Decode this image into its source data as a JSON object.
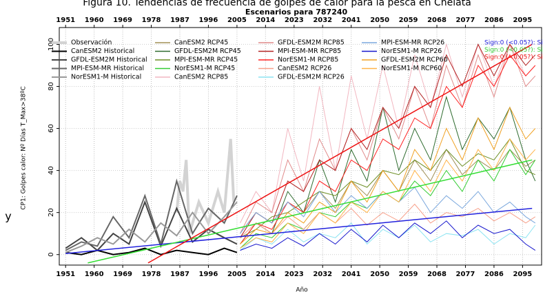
{
  "chart_data": {
    "type": "line",
    "title": "Figura 10. Tendencias de frecuencia de golpes de calor para la pesca en Chelata",
    "subtitle": "Escenarios  para  787240",
    "x_label": "Año",
    "y_label": "CP1: Golpes calor: Nº Días T_Max>38ºC",
    "stray_label": "y",
    "xlim": [
      1949,
      2101
    ],
    "ylim": [
      -5,
      108
    ],
    "xticks": [
      1951,
      1960,
      1969,
      1978,
      1987,
      1996,
      2005,
      2014,
      2023,
      2032,
      2041,
      2050,
      2059,
      2068,
      2077,
      2086,
      2095
    ],
    "yticks": [
      0,
      20,
      40,
      60,
      80,
      100
    ],
    "grid": true,
    "series": [
      {
        "name": "Observación",
        "color": "#d3d3d3",
        "width": 4,
        "x": [
          1986,
          1987,
          1988,
          1989,
          1990,
          1993,
          1996,
          1999,
          2001,
          2003,
          2004
        ],
        "values": [
          20,
          35,
          30,
          45,
          10,
          25,
          15,
          30,
          20,
          55,
          25
        ]
      },
      {
        "name": "CanESM2 Historical",
        "color": "#000000",
        "width": 2,
        "x": [
          1951,
          1956,
          1961,
          1966,
          1971,
          1976,
          1981,
          1986,
          1991,
          1996,
          2001,
          2005
        ],
        "values": [
          1,
          0,
          2,
          0,
          1,
          3,
          0,
          2,
          1,
          0,
          3,
          1
        ]
      },
      {
        "name": "GFDL-ESM2M Historical",
        "color": "#444444",
        "width": 2,
        "x": [
          1951,
          1956,
          1961,
          1966,
          1971,
          1976,
          1981,
          1986,
          1991,
          1996,
          2001,
          2005
        ],
        "values": [
          3,
          8,
          2,
          10,
          5,
          25,
          4,
          22,
          6,
          12,
          8,
          5
        ]
      },
      {
        "name": "MPI-ESM-MR Historical",
        "color": "#666666",
        "width": 2,
        "x": [
          1951,
          1956,
          1961,
          1966,
          1971,
          1976,
          1981,
          1986,
          1991,
          1996,
          2001,
          2005
        ],
        "values": [
          2,
          6,
          4,
          18,
          8,
          28,
          5,
          35,
          10,
          22,
          15,
          28
        ]
      },
      {
        "name": "NorESM1-M Historical",
        "color": "#999999",
        "width": 2,
        "x": [
          1951,
          1956,
          1961,
          1966,
          1971,
          1976,
          1981,
          1986,
          1991,
          1996,
          2001,
          2005
        ],
        "values": [
          1,
          4,
          8,
          5,
          12,
          6,
          15,
          9,
          20,
          10,
          18,
          25
        ]
      },
      {
        "name": "CanESM2 RCP45",
        "color": "#a08f55",
        "width": 1,
        "x": [
          2006,
          2011,
          2016,
          2021,
          2026,
          2031,
          2036,
          2041,
          2046,
          2051,
          2056,
          2061,
          2066,
          2071,
          2076,
          2081,
          2086,
          2091,
          2096,
          2099
        ],
        "values": [
          10,
          20,
          15,
          25,
          20,
          30,
          22,
          35,
          28,
          40,
          30,
          45,
          35,
          50,
          38,
          45,
          40,
          50,
          42,
          45
        ]
      },
      {
        "name": "GFDL-ESM2M RCP45",
        "color": "#2e6b2e",
        "width": 1,
        "x": [
          2006,
          2011,
          2016,
          2021,
          2026,
          2031,
          2036,
          2041,
          2046,
          2051,
          2056,
          2061,
          2066,
          2071,
          2076,
          2081,
          2086,
          2091,
          2096,
          2099
        ],
        "values": [
          5,
          15,
          10,
          30,
          20,
          45,
          25,
          50,
          35,
          70,
          40,
          60,
          45,
          75,
          50,
          65,
          55,
          70,
          45,
          35
        ]
      },
      {
        "name": "MPI-ESM-MR RCP45",
        "color": "#6b8e23",
        "width": 1,
        "x": [
          2006,
          2011,
          2016,
          2021,
          2026,
          2031,
          2036,
          2041,
          2046,
          2051,
          2056,
          2061,
          2066,
          2071,
          2076,
          2081,
          2086,
          2091,
          2096,
          2099
        ],
        "values": [
          8,
          12,
          18,
          20,
          25,
          30,
          28,
          35,
          32,
          40,
          38,
          45,
          40,
          50,
          42,
          48,
          45,
          55,
          40,
          38
        ]
      },
      {
        "name": "NorESM1-M RCP45",
        "color": "#33cc33",
        "width": 1,
        "x": [
          2006,
          2011,
          2016,
          2021,
          2026,
          2031,
          2036,
          2041,
          2046,
          2051,
          2056,
          2061,
          2066,
          2071,
          2076,
          2081,
          2086,
          2091,
          2096,
          2099
        ],
        "values": [
          3,
          10,
          8,
          15,
          12,
          20,
          18,
          25,
          22,
          30,
          25,
          35,
          28,
          40,
          30,
          45,
          35,
          50,
          38,
          45
        ]
      },
      {
        "name": "CanESM2 RCP85",
        "color": "#f2b6c0",
        "width": 1,
        "x": [
          2006,
          2011,
          2016,
          2021,
          2026,
          2031,
          2036,
          2041,
          2046,
          2051,
          2056,
          2061,
          2066,
          2071,
          2076,
          2081,
          2086,
          2091,
          2096,
          2099
        ],
        "values": [
          15,
          30,
          20,
          60,
          35,
          80,
          40,
          85,
          55,
          90,
          60,
          95,
          70,
          100,
          75,
          100,
          80,
          100,
          85,
          90
        ]
      },
      {
        "name": "GFDL-ESM2M RCP85",
        "color": "#e08a8a",
        "width": 1,
        "x": [
          2006,
          2011,
          2016,
          2021,
          2026,
          2031,
          2036,
          2041,
          2046,
          2051,
          2056,
          2061,
          2066,
          2071,
          2076,
          2081,
          2086,
          2091,
          2096,
          2099
        ],
        "values": [
          10,
          25,
          20,
          45,
          30,
          55,
          40,
          60,
          45,
          70,
          55,
          80,
          60,
          90,
          70,
          95,
          75,
          100,
          80,
          85
        ]
      },
      {
        "name": "MPI-ESM-MR RCP85",
        "color": "#b22222",
        "width": 1,
        "x": [
          2006,
          2011,
          2016,
          2021,
          2026,
          2031,
          2036,
          2041,
          2046,
          2051,
          2056,
          2061,
          2066,
          2071,
          2076,
          2081,
          2086,
          2091,
          2096,
          2099
        ],
        "values": [
          8,
          20,
          15,
          35,
          30,
          45,
          40,
          60,
          50,
          70,
          60,
          80,
          70,
          95,
          80,
          100,
          85,
          100,
          90,
          95
        ]
      },
      {
        "name": "NorESM1-M RCP85",
        "color": "#ff2020",
        "width": 1,
        "x": [
          2006,
          2011,
          2016,
          2021,
          2026,
          2031,
          2036,
          2041,
          2046,
          2051,
          2056,
          2061,
          2066,
          2071,
          2076,
          2081,
          2086,
          2091,
          2096,
          2099
        ],
        "values": [
          5,
          15,
          12,
          25,
          20,
          35,
          30,
          45,
          40,
          55,
          50,
          65,
          60,
          80,
          70,
          90,
          80,
          95,
          85,
          90
        ]
      },
      {
        "name": "CanESM2 RCP26",
        "color": "#f7a08a",
        "width": 1,
        "x": [
          2006,
          2011,
          2016,
          2021,
          2026,
          2031,
          2036,
          2041,
          2046,
          2051,
          2056,
          2061,
          2066,
          2071,
          2076,
          2081,
          2086,
          2091,
          2096,
          2099
        ],
        "values": [
          8,
          15,
          10,
          18,
          12,
          20,
          15,
          22,
          14,
          20,
          16,
          24,
          15,
          20,
          18,
          22,
          16,
          20,
          15,
          18
        ]
      },
      {
        "name": "GFDL-ESM2M RCP26",
        "color": "#8ce4f2",
        "width": 1,
        "x": [
          2006,
          2011,
          2016,
          2021,
          2026,
          2031,
          2036,
          2041,
          2046,
          2051,
          2056,
          2061,
          2066,
          2071,
          2076,
          2081,
          2086,
          2091,
          2096,
          2099
        ],
        "values": [
          2,
          8,
          5,
          12,
          6,
          10,
          8,
          15,
          5,
          12,
          8,
          14,
          6,
          10,
          9,
          12,
          5,
          10,
          8,
          14
        ]
      },
      {
        "name": "MPI-ESM-MR RCP26",
        "color": "#7aa7dd",
        "width": 1,
        "x": [
          2006,
          2011,
          2016,
          2021,
          2026,
          2031,
          2036,
          2041,
          2046,
          2051,
          2056,
          2061,
          2066,
          2071,
          2076,
          2081,
          2086,
          2091,
          2096,
          2099
        ],
        "values": [
          10,
          20,
          15,
          25,
          18,
          30,
          20,
          28,
          22,
          30,
          25,
          32,
          20,
          28,
          22,
          30,
          20,
          25,
          18,
          15
        ]
      },
      {
        "name": "NorESM1-M RCP26",
        "color": "#1515cc",
        "width": 1,
        "x": [
          2006,
          2011,
          2016,
          2021,
          2026,
          2031,
          2036,
          2041,
          2046,
          2051,
          2056,
          2061,
          2066,
          2071,
          2076,
          2081,
          2086,
          2091,
          2096,
          2099
        ],
        "values": [
          2,
          5,
          3,
          8,
          4,
          10,
          5,
          12,
          6,
          14,
          8,
          15,
          10,
          16,
          8,
          14,
          10,
          12,
          5,
          2
        ]
      },
      {
        "name": "GFDL-ESM2M RCP60",
        "color": "#f0a020",
        "width": 1,
        "x": [
          2006,
          2011,
          2016,
          2021,
          2026,
          2031,
          2036,
          2041,
          2046,
          2051,
          2056,
          2061,
          2066,
          2071,
          2076,
          2081,
          2086,
          2091,
          2096,
          2099
        ],
        "values": [
          5,
          12,
          10,
          20,
          15,
          25,
          20,
          35,
          25,
          40,
          30,
          50,
          40,
          60,
          45,
          65,
          50,
          70,
          55,
          60
        ]
      },
      {
        "name": "NorESM1-M RCP60",
        "color": "#ffb347",
        "width": 1,
        "x": [
          2006,
          2011,
          2016,
          2021,
          2026,
          2031,
          2036,
          2041,
          2046,
          2051,
          2056,
          2061,
          2066,
          2071,
          2076,
          2081,
          2086,
          2091,
          2096,
          2099
        ],
        "values": [
          3,
          8,
          6,
          15,
          10,
          20,
          15,
          25,
          20,
          30,
          25,
          40,
          30,
          45,
          35,
          50,
          40,
          55,
          45,
          50
        ]
      }
    ],
    "trend_lines": [
      {
        "color": "#2020dd",
        "x": [
          1951,
          2098
        ],
        "values": [
          0.5,
          22
        ]
      },
      {
        "color": "#33dd33",
        "x": [
          1958,
          2098
        ],
        "values": [
          -4,
          45
        ]
      },
      {
        "color": "#ee1111",
        "x": [
          1977,
          2098
        ],
        "values": [
          -4,
          100
        ]
      }
    ],
    "annotations": [
      {
        "text": "Sign:0 (<0.05?): Si",
        "color": "#2020dd"
      },
      {
        "text": "Sign:0 (<0.05?): Si",
        "color": "#33cc33"
      },
      {
        "text": "Sign:0 (<0.05?): Si",
        "color": "#ee1111"
      }
    ]
  }
}
